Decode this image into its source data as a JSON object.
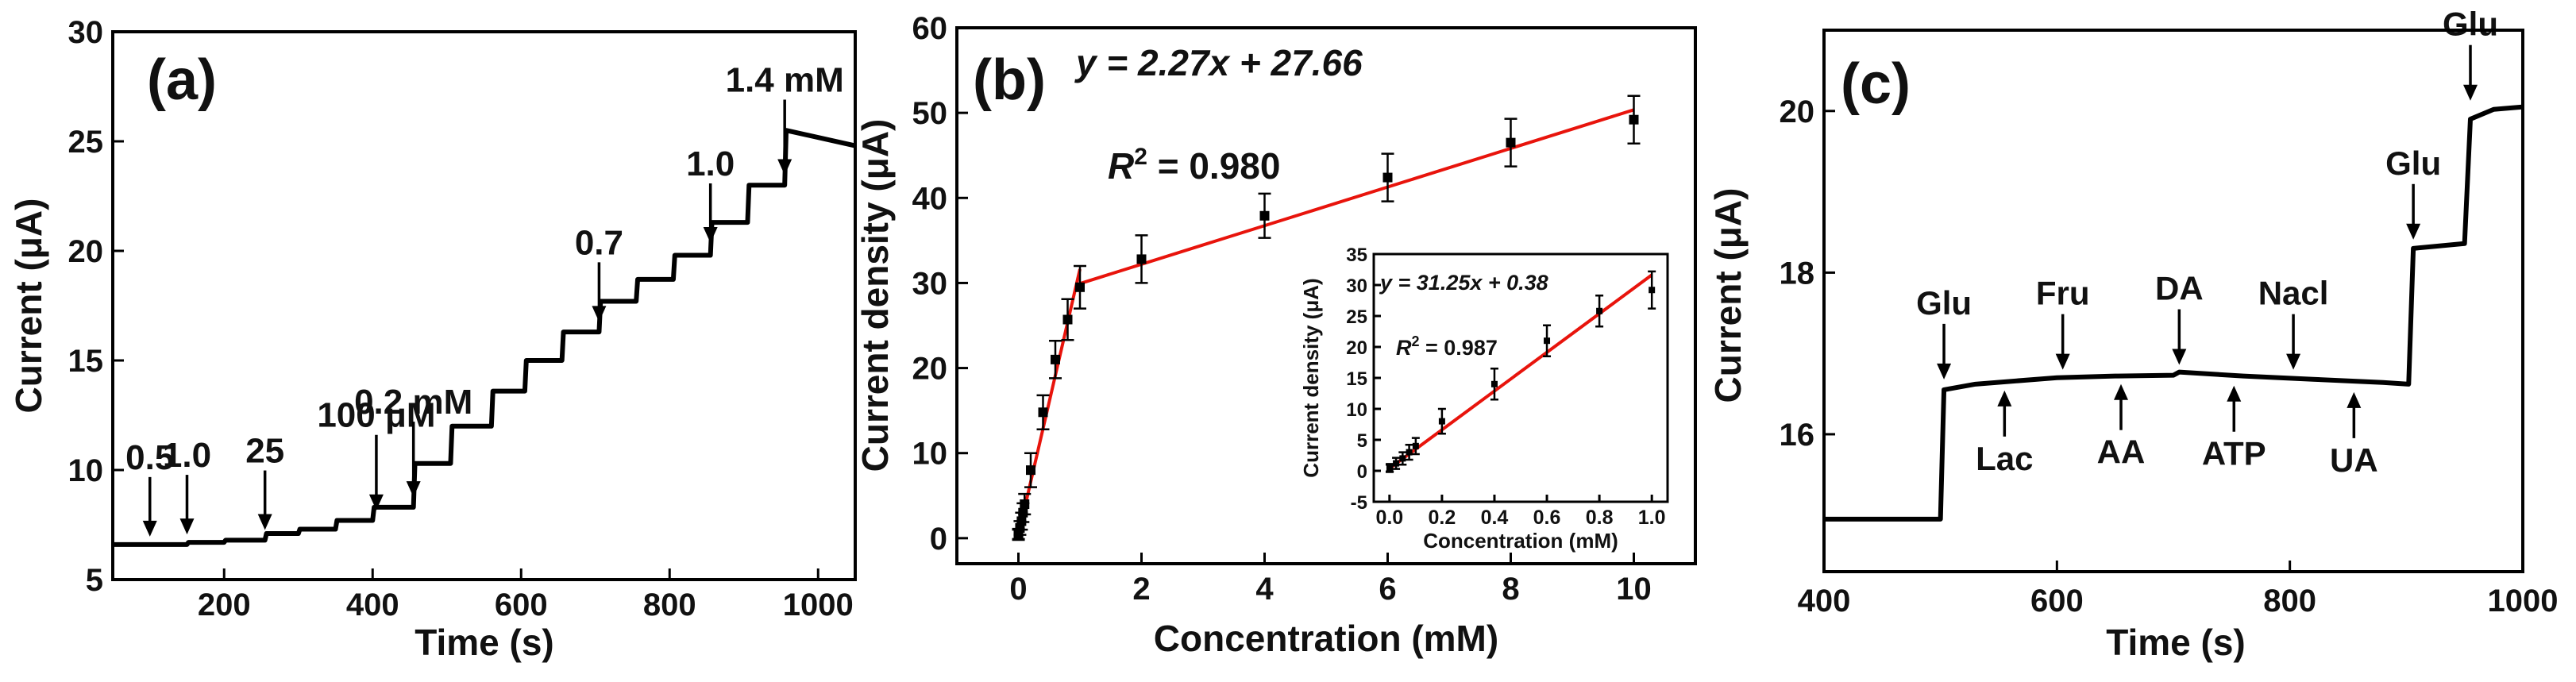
{
  "chart_data": [
    {
      "id": "a",
      "type": "line",
      "panel_label": "(a)",
      "xlabel": "Time (s)",
      "ylabel": "Current (μA)",
      "xlim": [
        50,
        1050
      ],
      "ylim": [
        5,
        30
      ],
      "xticks": [
        200,
        400,
        600,
        800,
        1000
      ],
      "yticks": [
        5,
        10,
        15,
        20,
        25,
        30
      ],
      "steps": [
        {
          "t": 50,
          "y": 6.6
        },
        {
          "t": 150,
          "y": 6.7
        },
        {
          "t": 200,
          "y": 6.8
        },
        {
          "t": 255,
          "y": 7.1
        },
        {
          "t": 300,
          "y": 7.3
        },
        {
          "t": 350,
          "y": 7.7
        },
        {
          "t": 400,
          "y": 8.3
        },
        {
          "t": 455,
          "y": 10.3
        },
        {
          "t": 505,
          "y": 12.0
        },
        {
          "t": 560,
          "y": 13.6
        },
        {
          "t": 605,
          "y": 15.0
        },
        {
          "t": 655,
          "y": 16.3
        },
        {
          "t": 705,
          "y": 17.7
        },
        {
          "t": 755,
          "y": 18.7
        },
        {
          "t": 805,
          "y": 19.8
        },
        {
          "t": 855,
          "y": 21.3
        },
        {
          "t": 905,
          "y": 23.0
        },
        {
          "t": 955,
          "y": 25.5
        }
      ],
      "end": {
        "t": 1050,
        "y": 24.8
      },
      "annotations": [
        {
          "label": "0.5",
          "x": 100,
          "y": 6.6
        },
        {
          "label": "1.0",
          "x": 150,
          "y": 6.7
        },
        {
          "label": "25",
          "x": 255,
          "y": 6.9
        },
        {
          "label": "100 μM",
          "x": 405,
          "y": 7.8
        },
        {
          "label": "0.2 mM",
          "x": 455,
          "y": 8.4
        },
        {
          "label": "0.7",
          "x": 705,
          "y": 16.4
        },
        {
          "label": "1.0",
          "x": 855,
          "y": 20.0
        },
        {
          "label": "1.4 mM",
          "x": 955,
          "y": 23.1
        }
      ]
    },
    {
      "id": "b",
      "type": "scatter",
      "panel_label": "(b)",
      "xlabel": "Concentration (mM)",
      "ylabel": "Current density (μA)",
      "xlim": [
        -1,
        11
      ],
      "ylim": [
        -3,
        60
      ],
      "xticks": [
        0,
        2,
        4,
        6,
        8,
        10
      ],
      "yticks": [
        0,
        10,
        20,
        30,
        40,
        50,
        60
      ],
      "equation": "y = 2.27x + 27.66",
      "r2_label": "R",
      "r2_sup": "2",
      "r2_value": " = 0.980",
      "points": [
        {
          "x": 0.0005,
          "y": 0.4,
          "err": 0.6
        },
        {
          "x": 0.001,
          "y": 0.5,
          "err": 0.6
        },
        {
          "x": 0.025,
          "y": 1.2,
          "err": 0.8
        },
        {
          "x": 0.05,
          "y": 2.0,
          "err": 1.0
        },
        {
          "x": 0.075,
          "y": 3.0,
          "err": 1.1
        },
        {
          "x": 0.1,
          "y": 4.0,
          "err": 1.2
        },
        {
          "x": 0.2,
          "y": 8.0,
          "err": 2.0
        },
        {
          "x": 0.4,
          "y": 14.8,
          "err": 2.0
        },
        {
          "x": 0.6,
          "y": 21.0,
          "err": 2.2
        },
        {
          "x": 0.8,
          "y": 25.7,
          "err": 2.4
        },
        {
          "x": 1.0,
          "y": 29.5,
          "err": 2.5
        },
        {
          "x": 2.0,
          "y": 32.8,
          "err": 2.8
        },
        {
          "x": 4.0,
          "y": 37.9,
          "err": 2.6
        },
        {
          "x": 6.0,
          "y": 42.4,
          "err": 2.8
        },
        {
          "x": 8.0,
          "y": 46.5,
          "err": 2.8
        },
        {
          "x": 10.0,
          "y": 49.2,
          "err": 2.8
        }
      ],
      "fit_segments": [
        [
          [
            0,
            0.38
          ],
          [
            1.0,
            31.63
          ]
        ],
        [
          [
            1.0,
            29.93
          ],
          [
            10.0,
            50.36
          ]
        ]
      ],
      "inset": {
        "xlabel": "Concentration (mM)",
        "ylabel": "Current density (μA)",
        "xlim": [
          -0.06,
          1.06
        ],
        "ylim": [
          -5,
          35
        ],
        "xticks": [
          0.0,
          0.2,
          0.4,
          0.6,
          0.8,
          1.0
        ],
        "xtick_labels": [
          "0.0",
          "0.2",
          "0.4",
          "0.6",
          "0.8",
          "1.0"
        ],
        "yticks": [
          -5,
          0,
          5,
          10,
          15,
          20,
          25,
          30,
          35
        ],
        "equation": "y = 31.25x + 0.38",
        "r2_label": "R",
        "r2_sup": "2",
        "r2_value": " = 0.987",
        "points": [
          {
            "x": 0.0005,
            "y": 0.4,
            "err": 0.6
          },
          {
            "x": 0.001,
            "y": 0.5,
            "err": 0.6
          },
          {
            "x": 0.025,
            "y": 1.2,
            "err": 0.9
          },
          {
            "x": 0.05,
            "y": 2.0,
            "err": 1.0
          },
          {
            "x": 0.075,
            "y": 3.0,
            "err": 1.2
          },
          {
            "x": 0.1,
            "y": 4.0,
            "err": 1.3
          },
          {
            "x": 0.2,
            "y": 8.0,
            "err": 2.0
          },
          {
            "x": 0.4,
            "y": 14.0,
            "err": 2.5
          },
          {
            "x": 0.6,
            "y": 21.0,
            "err": 2.5
          },
          {
            "x": 0.8,
            "y": 25.8,
            "err": 2.5
          },
          {
            "x": 1.0,
            "y": 29.2,
            "err": 3.0
          }
        ],
        "fit": [
          [
            0,
            0.38
          ],
          [
            1.0,
            31.63
          ]
        ]
      }
    },
    {
      "id": "c",
      "type": "line",
      "panel_label": "(c)",
      "xlabel": "Time (s)",
      "ylabel": "Current (μA)",
      "xlim": [
        400,
        1000
      ],
      "ylim": [
        14.3,
        21.0
      ],
      "xticks": [
        400,
        600,
        800,
        1000
      ],
      "yticks": [
        16,
        18,
        20
      ],
      "trace": [
        [
          400,
          14.95
        ],
        [
          500,
          14.95
        ],
        [
          503,
          16.55
        ],
        [
          530,
          16.62
        ],
        [
          600,
          16.7
        ],
        [
          650,
          16.72
        ],
        [
          700,
          16.73
        ],
        [
          705,
          16.77
        ],
        [
          760,
          16.72
        ],
        [
          820,
          16.68
        ],
        [
          880,
          16.64
        ],
        [
          902,
          16.62
        ],
        [
          906,
          18.3
        ],
        [
          950,
          18.36
        ],
        [
          955,
          19.9
        ],
        [
          975,
          20.02
        ],
        [
          1000,
          20.05
        ]
      ],
      "annotations": [
        {
          "label": "Glu",
          "x": 503,
          "y": 16.6,
          "dir": "down"
        },
        {
          "label": "Lac",
          "x": 555,
          "y": 16.62,
          "dir": "up"
        },
        {
          "label": "Fru",
          "x": 605,
          "y": 16.72,
          "dir": "down"
        },
        {
          "label": "AA",
          "x": 655,
          "y": 16.7,
          "dir": "up"
        },
        {
          "label": "DA",
          "x": 705,
          "y": 16.78,
          "dir": "down"
        },
        {
          "label": "ATP",
          "x": 752,
          "y": 16.68,
          "dir": "up"
        },
        {
          "label": "Nacl",
          "x": 803,
          "y": 16.72,
          "dir": "down"
        },
        {
          "label": "UA",
          "x": 855,
          "y": 16.6,
          "dir": "up"
        },
        {
          "label": "Glu",
          "x": 906,
          "y": 18.33,
          "dir": "down"
        },
        {
          "label": "Glu",
          "x": 955,
          "y": 20.05,
          "dir": "down"
        }
      ]
    }
  ]
}
